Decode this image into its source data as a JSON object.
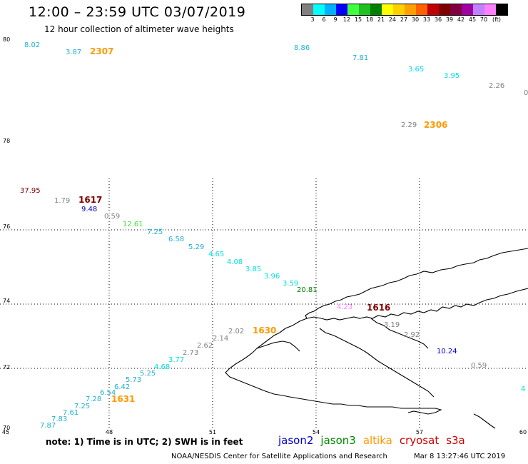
{
  "header": {
    "title": "12:00 – 23:59 UTC 03/07/2019",
    "subtitle": "12 hour collection of altimeter wave heights"
  },
  "legend": {
    "colors": [
      "#808080",
      "#00ffff",
      "#00b0ff",
      "#0000ff",
      "#40ff40",
      "#20c020",
      "#008000",
      "#ffff00",
      "#ffd000",
      "#ffa000",
      "#ff6000",
      "#c00000",
      "#800000",
      "#800040",
      "#a000a0",
      "#c080ff",
      "#ff80ff",
      "#000000"
    ],
    "ticks": [
      "3",
      "6",
      "9",
      "12",
      "15",
      "18",
      "21",
      "24",
      "27",
      "30",
      "33",
      "36",
      "39",
      "42",
      "45",
      "70",
      "(ft)"
    ]
  },
  "axes": {
    "lat_labels": [
      "80",
      "78",
      "76",
      "74",
      "72",
      "70"
    ],
    "lon_labels": [
      "45",
      "48",
      "51",
      "54",
      "57",
      "60"
    ]
  },
  "passes": [
    {
      "label": "2307",
      "color": "#ff9900"
    },
    {
      "label": "2306",
      "color": "#ff9900"
    },
    {
      "label": "1617",
      "color": "#800000"
    },
    {
      "label": "1616",
      "color": "#800000"
    },
    {
      "label": "1630",
      "color": "#ff9900"
    },
    {
      "label": "1631",
      "color": "#ff9900"
    }
  ],
  "wave_heights": [
    {
      "value": "8.02",
      "color": "#20b0d0"
    },
    {
      "value": "3.87",
      "color": "#20b0d0"
    },
    {
      "value": "8.86",
      "color": "#20b0d0"
    },
    {
      "value": "7.81",
      "color": "#20b0d0"
    },
    {
      "value": "3.65",
      "color": "#00e0e0"
    },
    {
      "value": "3.95",
      "color": "#00e0e0"
    },
    {
      "value": "2.26",
      "color": "#808080"
    },
    {
      "value": "0",
      "color": "#808080"
    },
    {
      "value": "2.29",
      "color": "#808080"
    },
    {
      "value": "37.95",
      "color": "#800000"
    },
    {
      "value": "1.79",
      "color": "#808080"
    },
    {
      "value": "9.48",
      "color": "#0000c0"
    },
    {
      "value": "0.59",
      "color": "#808080"
    },
    {
      "value": "12.61",
      "color": "#40e040"
    },
    {
      "value": "7.25",
      "color": "#20b0d0"
    },
    {
      "value": "6.58",
      "color": "#20b0d0"
    },
    {
      "value": "5.29",
      "color": "#20b0d0"
    },
    {
      "value": "4.65",
      "color": "#00e0e0"
    },
    {
      "value": "4.08",
      "color": "#00e0e0"
    },
    {
      "value": "3.85",
      "color": "#00e0e0"
    },
    {
      "value": "3.96",
      "color": "#00e0e0"
    },
    {
      "value": "3.59",
      "color": "#00e0e0"
    },
    {
      "value": "20.81",
      "color": "#008000"
    },
    {
      "value": "4.23",
      "color": "#ff80ff"
    },
    {
      "value": "3.19",
      "color": "#808080"
    },
    {
      "value": "2.92",
      "color": "#808080"
    },
    {
      "value": "10.24",
      "color": "#0000c0"
    },
    {
      "value": "0.59",
      "color": "#808080"
    },
    {
      "value": "4",
      "color": "#00e0e0"
    },
    {
      "value": "2.02",
      "color": "#808080"
    },
    {
      "value": "2.14",
      "color": "#808080"
    },
    {
      "value": "2.62",
      "color": "#808080"
    },
    {
      "value": "2.73",
      "color": "#808080"
    },
    {
      "value": "3.77",
      "color": "#00e0e0"
    },
    {
      "value": "4.68",
      "color": "#00e0e0"
    },
    {
      "value": "5.25",
      "color": "#20b0d0"
    },
    {
      "value": "5.73",
      "color": "#20b0d0"
    },
    {
      "value": "6.42",
      "color": "#20b0d0"
    },
    {
      "value": "6.54",
      "color": "#20b0d0"
    },
    {
      "value": "7.28",
      "color": "#20b0d0"
    },
    {
      "value": "7.25",
      "color": "#20b0d0"
    },
    {
      "value": "7.61",
      "color": "#20b0d0"
    },
    {
      "value": "7.83",
      "color": "#20b0d0"
    },
    {
      "value": "7.87",
      "color": "#20b0d0"
    }
  ],
  "footer": {
    "note": "note: 1) Time is in UTC; 2) SWH is in feet",
    "satellites": [
      {
        "name": "jason2",
        "color": "#0000cc"
      },
      {
        "name": "jason3",
        "color": "#008800"
      },
      {
        "name": "altika",
        "color": "#ff9900"
      },
      {
        "name": "cryosat",
        "color": "#cc0000"
      },
      {
        "name": "s3a",
        "color": "#cc0000"
      }
    ],
    "credit": "NOAA/NESDIS Center for Satellite Applications and Research",
    "timestamp": "Mar 8 13:27:46 UTC 2019"
  }
}
